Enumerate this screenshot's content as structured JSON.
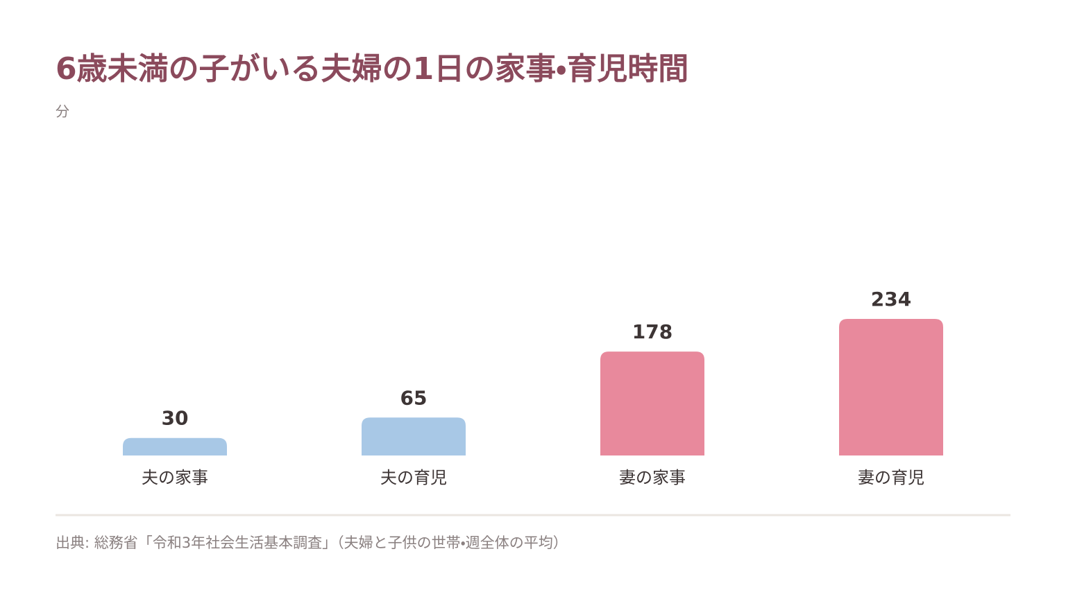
{
  "chart_data": {
    "type": "bar",
    "title": "6歳未満の子がいる夫婦の1日の家事・育児時間",
    "y_label": "分",
    "categories": [
      "夫の家事",
      "夫の育児",
      "妻の家事",
      "妻の育児"
    ],
    "values": [
      30,
      65,
      178,
      234
    ],
    "colors": [
      "#a8c8e6",
      "#a8c8e6",
      "#e8899c",
      "#e8899c"
    ],
    "source": "出典: 総務省「令和3年社会生活基本調査」（夫婦と子供の世帯・週全体の平均）"
  }
}
